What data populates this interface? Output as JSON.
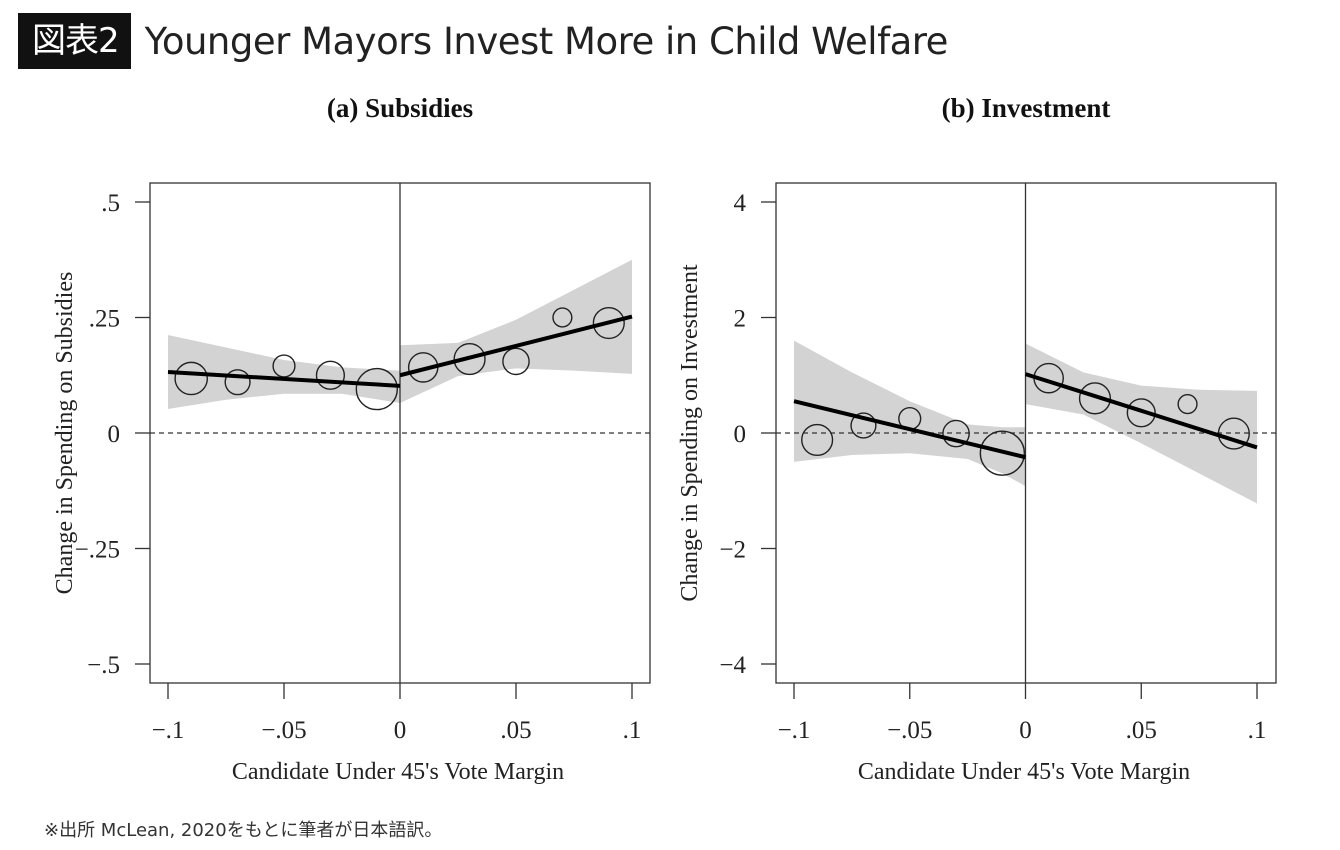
{
  "header": {
    "badge": "図表2",
    "title": "Younger Mayors Invest More in Child Welfare"
  },
  "footer": {
    "source_note": "※出所 McLean, 2020をもとに筆者が日本語訳。"
  },
  "chart_data": [
    {
      "type": "scatter",
      "title": "(a) Subsidies",
      "xlabel": "Candidate Under 45's Vote Margin",
      "ylabel": "Change in Spending on Subsidies",
      "xlim": [
        -0.1,
        0.1
      ],
      "ylim": [
        -0.5,
        0.5
      ],
      "xticks": [
        -0.1,
        -0.05,
        0,
        0.05,
        0.1
      ],
      "xtick_labels": [
        "−.1",
        "−.05",
        "0",
        ".05",
        ".1"
      ],
      "yticks": [
        0.5,
        0.25,
        0,
        -0.25,
        -0.5
      ],
      "ytick_labels": [
        ".5",
        ".25",
        "0",
        "−.25",
        "−.5"
      ],
      "cutoff": 0,
      "reference_line_y": 0,
      "grid": false,
      "points": [
        {
          "x": -0.09,
          "y": 0.118,
          "weight": 3
        },
        {
          "x": -0.07,
          "y": 0.11,
          "weight": 2
        },
        {
          "x": -0.05,
          "y": 0.145,
          "weight": 1.6
        },
        {
          "x": -0.03,
          "y": 0.125,
          "weight": 2.4
        },
        {
          "x": -0.01,
          "y": 0.095,
          "weight": 4.2
        },
        {
          "x": 0.01,
          "y": 0.142,
          "weight": 2.6
        },
        {
          "x": 0.03,
          "y": 0.16,
          "weight": 2.8
        },
        {
          "x": 0.05,
          "y": 0.155,
          "weight": 2.2
        },
        {
          "x": 0.07,
          "y": 0.25,
          "weight": 1.2
        },
        {
          "x": 0.09,
          "y": 0.238,
          "weight": 2.8
        }
      ],
      "fit_left": {
        "x": [
          -0.1,
          0
        ],
        "y": [
          0.132,
          0.102
        ]
      },
      "fit_right": {
        "x": [
          0,
          0.1
        ],
        "y": [
          0.125,
          0.252
        ]
      },
      "ci_left": {
        "x": [
          -0.1,
          -0.075,
          -0.05,
          -0.025,
          0
        ],
        "upper": [
          0.212,
          0.185,
          0.158,
          0.142,
          0.135
        ],
        "lower": [
          0.052,
          0.072,
          0.085,
          0.085,
          0.065
        ]
      },
      "ci_right": {
        "x": [
          0,
          0.025,
          0.05,
          0.075,
          0.1
        ],
        "upper": [
          0.19,
          0.195,
          0.245,
          0.31,
          0.375
        ],
        "lower": [
          0.065,
          0.123,
          0.14,
          0.135,
          0.128
        ]
      }
    },
    {
      "type": "scatter",
      "title": "(b) Investment",
      "xlabel": "Candidate Under 45's Vote Margin",
      "ylabel": "Change in Spending on Investment",
      "xlim": [
        -0.1,
        0.1
      ],
      "ylim": [
        -4,
        4
      ],
      "xticks": [
        -0.1,
        -0.05,
        0,
        0.05,
        0.1
      ],
      "xtick_labels": [
        "−.1",
        "−.05",
        "0",
        ".05",
        ".1"
      ],
      "yticks": [
        4,
        2,
        0,
        -2,
        -4
      ],
      "ytick_labels": [
        "4",
        "2",
        "0",
        "−2",
        "−4"
      ],
      "cutoff": 0,
      "reference_line_y": 0,
      "grid": false,
      "points": [
        {
          "x": -0.09,
          "y": -0.12,
          "weight": 2.8
        },
        {
          "x": -0.07,
          "y": 0.13,
          "weight": 2.0
        },
        {
          "x": -0.05,
          "y": 0.25,
          "weight": 1.6
        },
        {
          "x": -0.03,
          "y": -0.01,
          "weight": 2.2
        },
        {
          "x": -0.01,
          "y": -0.35,
          "weight": 4.6
        },
        {
          "x": 0.01,
          "y": 0.95,
          "weight": 2.6
        },
        {
          "x": 0.03,
          "y": 0.6,
          "weight": 2.8
        },
        {
          "x": 0.05,
          "y": 0.35,
          "weight": 2.4
        },
        {
          "x": 0.07,
          "y": 0.5,
          "weight": 1.2
        },
        {
          "x": 0.09,
          "y": -0.01,
          "weight": 2.8
        }
      ],
      "fit_left": {
        "x": [
          -0.1,
          0
        ],
        "y": [
          0.55,
          -0.42
        ]
      },
      "fit_right": {
        "x": [
          0,
          0.1
        ],
        "y": [
          1.02,
          -0.25
        ]
      },
      "ci_left": {
        "x": [
          -0.1,
          -0.075,
          -0.05,
          -0.025,
          -0.01,
          0
        ],
        "upper": [
          1.6,
          1.05,
          0.55,
          0.15,
          0.1,
          0.1
        ],
        "lower": [
          -0.5,
          -0.38,
          -0.35,
          -0.45,
          -0.7,
          -0.92
        ]
      },
      "ci_right": {
        "x": [
          0,
          0.025,
          0.05,
          0.075,
          0.1
        ],
        "upper": [
          1.55,
          1.05,
          0.82,
          0.75,
          0.73
        ],
        "lower": [
          0.5,
          0.32,
          -0.18,
          -0.7,
          -1.22
        ]
      }
    }
  ]
}
